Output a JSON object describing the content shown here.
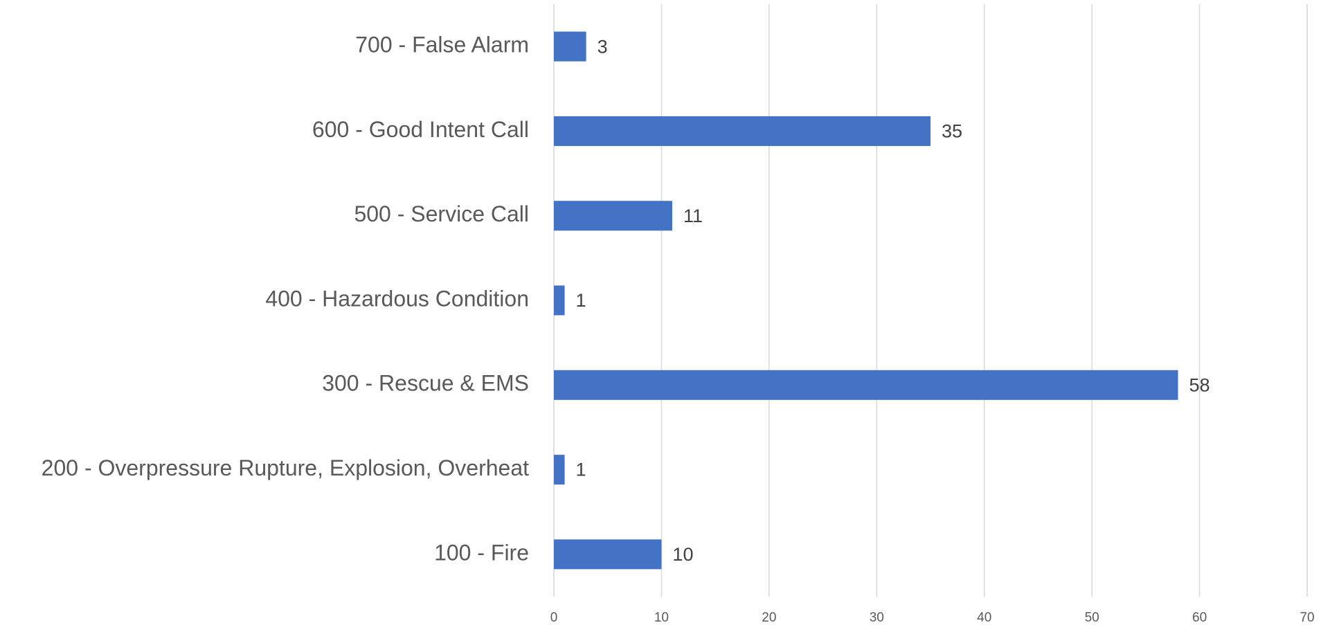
{
  "chart_data": {
    "type": "bar",
    "orientation": "horizontal",
    "categories": [
      "100 - Fire",
      "200 - Overpressure Rupture, Explosion, Overheat",
      "300 - Rescue & EMS",
      "400 - Hazardous Condition",
      "500 - Service Call",
      "600 - Good Intent Call",
      "700 - False Alarm"
    ],
    "values": [
      10,
      1,
      58,
      1,
      11,
      35,
      3
    ],
    "color": "#4472c4",
    "xlim": [
      0,
      70
    ],
    "xticks": [
      0,
      10,
      20,
      30,
      40,
      50,
      60,
      70
    ],
    "grid": true
  }
}
